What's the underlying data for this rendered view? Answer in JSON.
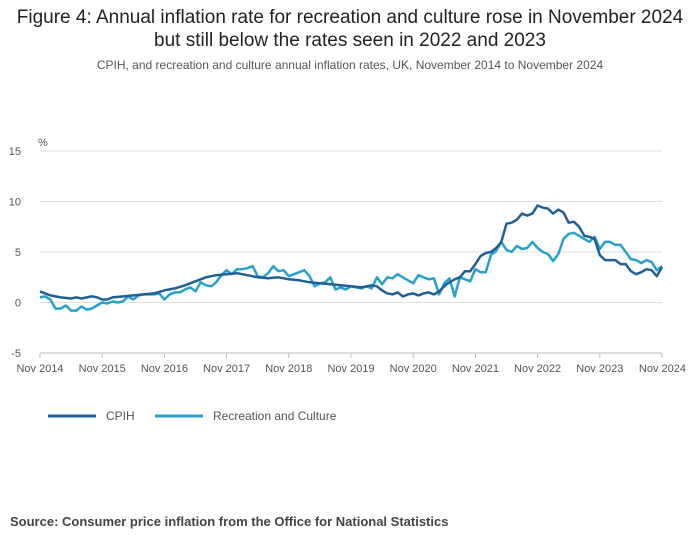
{
  "title": "Figure 4: Annual inflation rate for recreation and culture rose in November 2024 but still below the rates seen in 2022 and 2023",
  "subtitle": "CPIH, and recreation and culture annual inflation rates, UK, November 2014 to November 2024",
  "source": "Source: Consumer price inflation from the Office for National Statistics",
  "chart_data": {
    "type": "line",
    "ylabel": "%",
    "ylim": [
      -5,
      15
    ],
    "yticks": [
      -5,
      0,
      5,
      10,
      15
    ],
    "xlim": [
      0,
      120
    ],
    "xticks": [
      {
        "label": "Nov 2014",
        "value": 0
      },
      {
        "label": "Nov 2015",
        "value": 12
      },
      {
        "label": "Nov 2016",
        "value": 24
      },
      {
        "label": "Nov 2017",
        "value": 36
      },
      {
        "label": "Nov 2018",
        "value": 48
      },
      {
        "label": "Nov 2019",
        "value": 60
      },
      {
        "label": "Nov 2020",
        "value": 72
      },
      {
        "label": "Nov 2021",
        "value": 84
      },
      {
        "label": "Nov 2022",
        "value": 96
      },
      {
        "label": "Nov 2023",
        "value": 108
      },
      {
        "label": "Nov 2024",
        "value": 120
      }
    ],
    "grid": true,
    "legend": "bottom-left",
    "series": [
      {
        "name": "CPIH",
        "color": "#206095",
        "points": [
          [
            0,
            1.1
          ],
          [
            2,
            0.7
          ],
          [
            4,
            0.5
          ],
          [
            6,
            0.4
          ],
          [
            7,
            0.5
          ],
          [
            8,
            0.4
          ],
          [
            9,
            0.5
          ],
          [
            10,
            0.6
          ],
          [
            11,
            0.5
          ],
          [
            12,
            0.3
          ],
          [
            13,
            0.3
          ],
          [
            14,
            0.5
          ],
          [
            16,
            0.6
          ],
          [
            18,
            0.7
          ],
          [
            20,
            0.8
          ],
          [
            22,
            0.9
          ],
          [
            24,
            1.2
          ],
          [
            26,
            1.4
          ],
          [
            28,
            1.7
          ],
          [
            30,
            2.1
          ],
          [
            32,
            2.5
          ],
          [
            34,
            2.7
          ],
          [
            36,
            2.8
          ],
          [
            38,
            2.9
          ],
          [
            40,
            2.7
          ],
          [
            42,
            2.5
          ],
          [
            44,
            2.4
          ],
          [
            46,
            2.5
          ],
          [
            48,
            2.3
          ],
          [
            50,
            2.2
          ],
          [
            52,
            2.0
          ],
          [
            54,
            1.9
          ],
          [
            56,
            1.8
          ],
          [
            58,
            1.7
          ],
          [
            60,
            1.6
          ],
          [
            62,
            1.5
          ],
          [
            64,
            1.7
          ],
          [
            65,
            1.6
          ],
          [
            66,
            1.2
          ],
          [
            67,
            0.9
          ],
          [
            68,
            0.8
          ],
          [
            69,
            1.0
          ],
          [
            70,
            0.6
          ],
          [
            71,
            0.8
          ],
          [
            72,
            0.9
          ],
          [
            73,
            0.7
          ],
          [
            74,
            0.9
          ],
          [
            75,
            1.0
          ],
          [
            76,
            0.8
          ],
          [
            77,
            1.1
          ],
          [
            78,
            1.6
          ],
          [
            79,
            2.0
          ],
          [
            80,
            2.3
          ],
          [
            81,
            2.5
          ],
          [
            82,
            3.1
          ],
          [
            83,
            3.1
          ],
          [
            84,
            3.8
          ],
          [
            85,
            4.6
          ],
          [
            86,
            4.9
          ],
          [
            87,
            5.0
          ],
          [
            88,
            5.4
          ],
          [
            89,
            6.0
          ],
          [
            90,
            7.8
          ],
          [
            91,
            7.9
          ],
          [
            92,
            8.2
          ],
          [
            93,
            8.8
          ],
          [
            94,
            8.6
          ],
          [
            95,
            8.8
          ],
          [
            96,
            9.6
          ],
          [
            97,
            9.4
          ],
          [
            98,
            9.3
          ],
          [
            99,
            8.8
          ],
          [
            100,
            9.2
          ],
          [
            101,
            8.9
          ],
          [
            102,
            7.9
          ],
          [
            103,
            8.0
          ],
          [
            104,
            7.5
          ],
          [
            105,
            6.6
          ],
          [
            106,
            6.5
          ],
          [
            107,
            6.3
          ],
          [
            108,
            4.7
          ],
          [
            109,
            4.2
          ],
          [
            110,
            4.2
          ],
          [
            111,
            4.2
          ],
          [
            112,
            3.8
          ],
          [
            113,
            3.8
          ],
          [
            114,
            3.1
          ],
          [
            115,
            2.8
          ],
          [
            116,
            3.0
          ],
          [
            117,
            3.3
          ],
          [
            118,
            3.2
          ],
          [
            119,
            2.6
          ],
          [
            120,
            3.5
          ]
        ]
      },
      {
        "name": "Recreation and Culture",
        "color": "#27a0cc",
        "points": [
          [
            0,
            0.5
          ],
          [
            1,
            0.6
          ],
          [
            2,
            0.3
          ],
          [
            3,
            -0.6
          ],
          [
            4,
            -0.6
          ],
          [
            5,
            -0.3
          ],
          [
            6,
            -0.8
          ],
          [
            7,
            -0.8
          ],
          [
            8,
            -0.4
          ],
          [
            9,
            -0.7
          ],
          [
            10,
            -0.6
          ],
          [
            11,
            -0.3
          ],
          [
            12,
            0.0
          ],
          [
            13,
            -0.1
          ],
          [
            14,
            0.1
          ],
          [
            15,
            0.0
          ],
          [
            16,
            0.1
          ],
          [
            17,
            0.6
          ],
          [
            18,
            0.3
          ],
          [
            19,
            0.7
          ],
          [
            20,
            0.8
          ],
          [
            21,
            0.8
          ],
          [
            22,
            0.8
          ],
          [
            23,
            0.9
          ],
          [
            24,
            0.3
          ],
          [
            25,
            0.8
          ],
          [
            26,
            1.0
          ],
          [
            27,
            1.0
          ],
          [
            28,
            1.3
          ],
          [
            29,
            1.5
          ],
          [
            30,
            1.1
          ],
          [
            31,
            2.0
          ],
          [
            32,
            1.7
          ],
          [
            33,
            1.6
          ],
          [
            34,
            2.0
          ],
          [
            35,
            2.7
          ],
          [
            36,
            3.2
          ],
          [
            37,
            2.8
          ],
          [
            38,
            3.3
          ],
          [
            39,
            3.3
          ],
          [
            40,
            3.4
          ],
          [
            41,
            3.6
          ],
          [
            42,
            2.6
          ],
          [
            43,
            2.5
          ],
          [
            44,
            2.9
          ],
          [
            45,
            3.6
          ],
          [
            46,
            3.1
          ],
          [
            47,
            3.2
          ],
          [
            48,
            2.6
          ],
          [
            49,
            2.8
          ],
          [
            50,
            3.0
          ],
          [
            51,
            3.2
          ],
          [
            52,
            2.6
          ],
          [
            53,
            1.6
          ],
          [
            54,
            1.9
          ],
          [
            55,
            2.0
          ],
          [
            56,
            2.5
          ],
          [
            57,
            1.3
          ],
          [
            58,
            1.5
          ],
          [
            59,
            1.3
          ],
          [
            60,
            1.6
          ],
          [
            61,
            1.5
          ],
          [
            62,
            1.4
          ],
          [
            63,
            1.6
          ],
          [
            64,
            1.4
          ],
          [
            65,
            2.5
          ],
          [
            66,
            1.8
          ],
          [
            67,
            2.5
          ],
          [
            68,
            2.4
          ],
          [
            69,
            2.8
          ],
          [
            70,
            2.5
          ],
          [
            71,
            2.2
          ],
          [
            72,
            1.9
          ],
          [
            73,
            2.7
          ],
          [
            74,
            2.5
          ],
          [
            75,
            2.3
          ],
          [
            76,
            2.4
          ],
          [
            77,
            0.8
          ],
          [
            78,
            1.9
          ],
          [
            79,
            2.4
          ],
          [
            80,
            0.6
          ],
          [
            81,
            2.5
          ],
          [
            82,
            2.3
          ],
          [
            83,
            2.1
          ],
          [
            84,
            3.3
          ],
          [
            85,
            3.0
          ],
          [
            86,
            3.0
          ],
          [
            87,
            4.7
          ],
          [
            88,
            5.1
          ],
          [
            89,
            6.0
          ],
          [
            90,
            5.2
          ],
          [
            91,
            5.0
          ],
          [
            92,
            5.6
          ],
          [
            93,
            5.3
          ],
          [
            94,
            5.4
          ],
          [
            95,
            6.0
          ],
          [
            96,
            5.4
          ],
          [
            97,
            5.0
          ],
          [
            98,
            4.8
          ],
          [
            99,
            4.1
          ],
          [
            100,
            4.8
          ],
          [
            101,
            6.3
          ],
          [
            102,
            6.8
          ],
          [
            103,
            6.9
          ],
          [
            104,
            6.6
          ],
          [
            105,
            6.3
          ],
          [
            106,
            6.0
          ],
          [
            107,
            6.5
          ],
          [
            108,
            5.3
          ],
          [
            109,
            6.0
          ],
          [
            110,
            6.0
          ],
          [
            111,
            5.7
          ],
          [
            112,
            5.7
          ],
          [
            113,
            5.0
          ],
          [
            114,
            4.3
          ],
          [
            115,
            4.2
          ],
          [
            116,
            3.9
          ],
          [
            117,
            4.2
          ],
          [
            118,
            4.0
          ],
          [
            119,
            3.2
          ],
          [
            120,
            3.6
          ]
        ]
      }
    ]
  }
}
